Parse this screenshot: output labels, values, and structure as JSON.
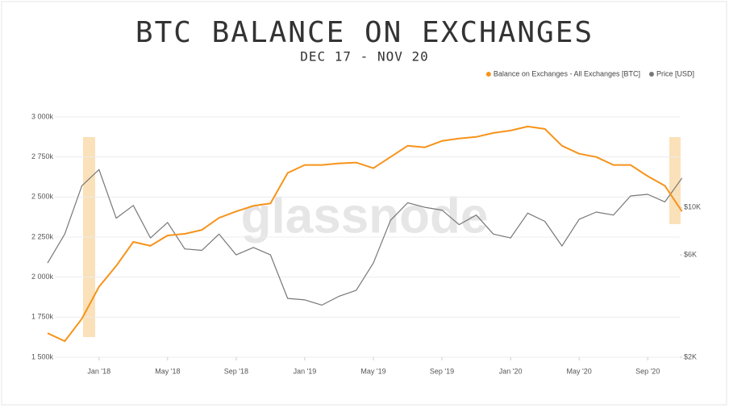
{
  "chart_data": {
    "type": "line",
    "title": "BTC BALANCE ON EXCHANGES",
    "subtitle": "DEC 17 - NOV 20",
    "watermark": "glassnode",
    "x": [
      "2017-10",
      "2017-11",
      "2017-12",
      "2018-01",
      "2018-02",
      "2018-03",
      "2018-04",
      "2018-05",
      "2018-06",
      "2018-07",
      "2018-08",
      "2018-09",
      "2018-10",
      "2018-11",
      "2018-12",
      "2019-01",
      "2019-02",
      "2019-03",
      "2019-04",
      "2019-05",
      "2019-06",
      "2019-07",
      "2019-08",
      "2019-09",
      "2019-10",
      "2019-11",
      "2019-12",
      "2020-01",
      "2020-02",
      "2020-03",
      "2020-04",
      "2020-05",
      "2020-06",
      "2020-07",
      "2020-08",
      "2020-09",
      "2020-10",
      "2020-11"
    ],
    "series": [
      {
        "name": "Balance on Exchanges - All Exchanges [BTC]",
        "color": "#f7931a",
        "values": [
          1650000,
          1600000,
          1740000,
          1940000,
          2070000,
          2220000,
          2195000,
          2260000,
          2270000,
          2295000,
          2370000,
          2410000,
          2445000,
          2460000,
          2650000,
          2700000,
          2700000,
          2710000,
          2715000,
          2680000,
          2750000,
          2820000,
          2810000,
          2850000,
          2865000,
          2875000,
          2900000,
          2915000,
          2940000,
          2925000,
          2820000,
          2770000,
          2750000,
          2700000,
          2700000,
          2630000,
          2570000,
          2410000
        ]
      },
      {
        "name": "Price [USD]",
        "color": "#777777",
        "axis": "y2",
        "values": [
          5500,
          7500,
          12600,
          15000,
          8900,
          10200,
          7200,
          8500,
          6400,
          6300,
          7500,
          6000,
          6500,
          6000,
          3760,
          3700,
          3500,
          3850,
          4100,
          5500,
          8700,
          10500,
          10000,
          9700,
          8300,
          9200,
          7500,
          7200,
          9400,
          8600,
          6600,
          8800,
          9500,
          9200,
          11300,
          11500,
          10600,
          13700
        ]
      }
    ],
    "xlim": [
      "2017-10",
      "2020-12"
    ],
    "xticks": [
      {
        "value": "2018-01",
        "label": "Jan '18"
      },
      {
        "value": "2018-05",
        "label": "May '18"
      },
      {
        "value": "2018-09",
        "label": "Sep '18"
      },
      {
        "value": "2019-01",
        "label": "Jan '19"
      },
      {
        "value": "2019-05",
        "label": "May '19"
      },
      {
        "value": "2019-09",
        "label": "Sep '19"
      },
      {
        "value": "2020-01",
        "label": "Jan '20"
      },
      {
        "value": "2020-05",
        "label": "May '20"
      },
      {
        "value": "2020-09",
        "label": "Sep '20"
      }
    ],
    "ylim": [
      1500000,
      3000000
    ],
    "yticks": [
      {
        "value": 1500000,
        "label": "1 500k"
      },
      {
        "value": 1750000,
        "label": "1 750k"
      },
      {
        "value": 2000000,
        "label": "2 000k"
      },
      {
        "value": 2250000,
        "label": "2 250k"
      },
      {
        "value": 2500000,
        "label": "2 500k"
      },
      {
        "value": 2750000,
        "label": "2 750k"
      },
      {
        "value": 3000000,
        "label": "3 000k"
      }
    ],
    "y2lim": [
      2000,
      26400
    ],
    "y2ticks": [
      {
        "value": 2000,
        "label": "$2K"
      },
      {
        "value": 6000,
        "label": "$6K"
      },
      {
        "value": 10000,
        "label": "$10K"
      }
    ],
    "y2log": true,
    "grid": true,
    "legend": "top-right"
  }
}
